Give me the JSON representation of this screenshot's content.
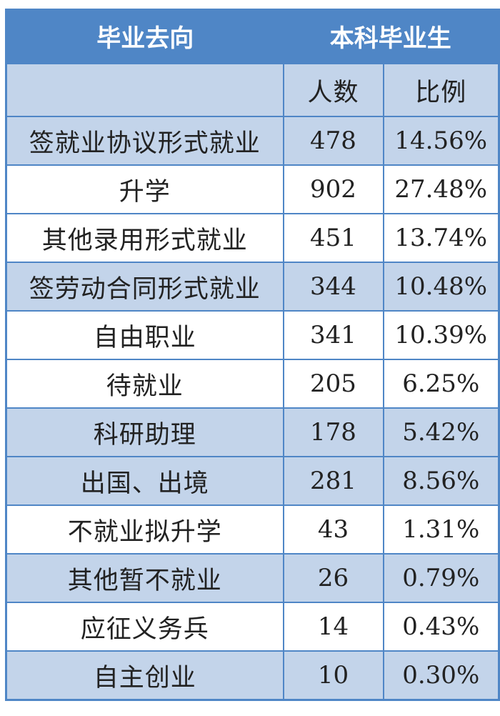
{
  "header": {
    "col1": "毕业去向",
    "col2": "本科毕业生"
  },
  "subheader": {
    "count": "人数",
    "ratio": "比例"
  },
  "rows": [
    {
      "name": "签就业协议形式就业",
      "count": "478",
      "ratio": "14.56%"
    },
    {
      "name": "升学",
      "count": "902",
      "ratio": "27.48%"
    },
    {
      "name": "其他录用形式就业",
      "count": "451",
      "ratio": "13.74%"
    },
    {
      "name": "签劳动合同形式就业",
      "count": "344",
      "ratio": "10.48%"
    },
    {
      "name": "自由职业",
      "count": "341",
      "ratio": "10.39%"
    },
    {
      "name": "待就业",
      "count": "205",
      "ratio": "6.25%"
    },
    {
      "name": "科研助理",
      "count": "178",
      "ratio": "5.42%"
    },
    {
      "name": "出国、出境",
      "count": "281",
      "ratio": "8.56%"
    },
    {
      "name": "不就业拟升学",
      "count": "43",
      "ratio": "1.31%"
    },
    {
      "name": "其他暂不就业",
      "count": "26",
      "ratio": "0.79%"
    },
    {
      "name": "应征义务兵",
      "count": "14",
      "ratio": "0.43%"
    },
    {
      "name": "自主创业",
      "count": "10",
      "ratio": "0.30%"
    }
  ],
  "colors": {
    "header_bg": "#4f86c6",
    "shade_bg": "#c3d4ea",
    "border": "#4f86c6"
  }
}
